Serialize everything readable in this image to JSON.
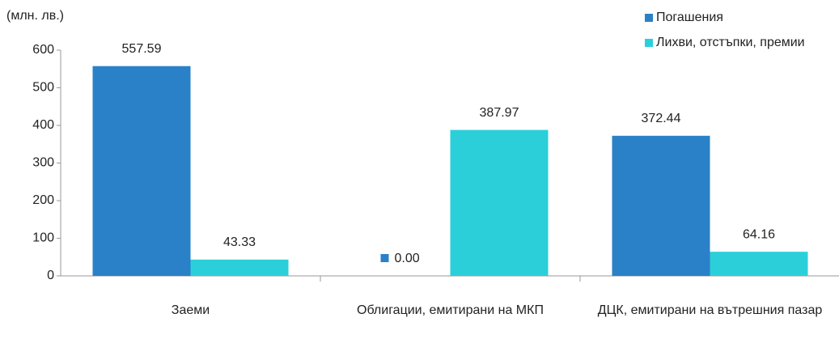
{
  "chart_data": {
    "type": "bar",
    "y_label": "(млн. лв.)",
    "categories": [
      "Заеми",
      "Облигации, емитирани на МКП",
      "ДЦК, емитирани на вътрешния пазар"
    ],
    "series": [
      {
        "name": "Погашения",
        "color": "#2a81c8",
        "values": [
          557.59,
          0,
          372.44
        ],
        "value_labels": [
          "557.59",
          "0.00",
          "372.44"
        ]
      },
      {
        "name": "Лихви, отстъпки, премии",
        "color": "#2bcfd9",
        "values": [
          43.33,
          387.97,
          64.16
        ],
        "value_labels": [
          "43.33",
          "387.97",
          "64.16"
        ]
      }
    ],
    "ylim": [
      0,
      600
    ],
    "yticks": [
      0,
      100,
      200,
      300,
      400,
      500,
      600
    ],
    "legend": "top-right"
  }
}
